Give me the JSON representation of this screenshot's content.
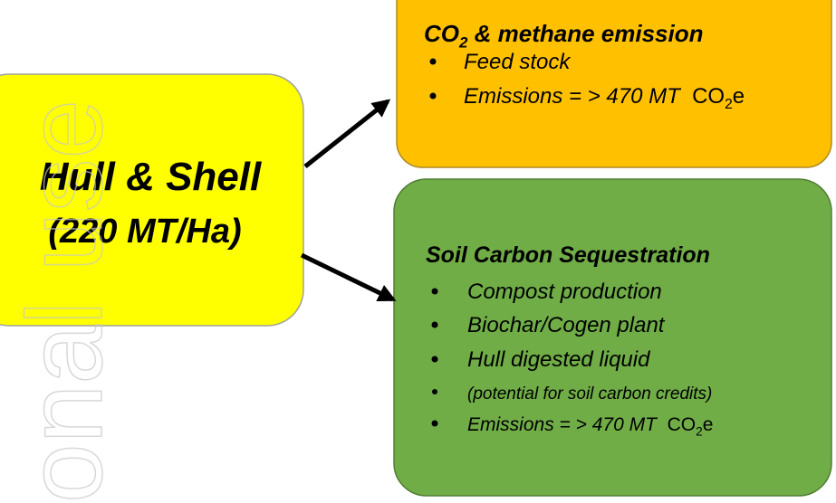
{
  "watermark": "onal use",
  "source": {
    "line1": "Hull & Shell",
    "line2": "(220 MT/Ha)"
  },
  "emission_box": {
    "title": [
      {
        "text": "CO"
      },
      {
        "text": "2",
        "sub": true
      },
      {
        "text": " & methane emission"
      }
    ],
    "items": [
      [
        {
          "text": "Feed stock"
        }
      ],
      [
        {
          "text": "Emissions = > 470 MT  "
        },
        {
          "text": "CO",
          "upright": true
        },
        {
          "text": "2",
          "sub": true,
          "upright": true
        },
        {
          "text": "e",
          "upright": true
        }
      ]
    ]
  },
  "sequestration_box": {
    "title": [
      {
        "text": "Soil Carbon Sequestration"
      }
    ],
    "items": [
      [
        {
          "text": "Compost production"
        }
      ],
      [
        {
          "text": "Biochar/Cogen plant"
        }
      ],
      [
        {
          "text": "Hull digested liquid"
        }
      ],
      [
        {
          "text": "(potential for soil carbon credits)"
        }
      ],
      [
        {
          "text": "Emissions = > 470 MT  "
        },
        {
          "text": "CO",
          "upright": true
        },
        {
          "text": "2",
          "sub": true,
          "upright": true
        },
        {
          "text": "e",
          "upright": true
        }
      ]
    ]
  }
}
